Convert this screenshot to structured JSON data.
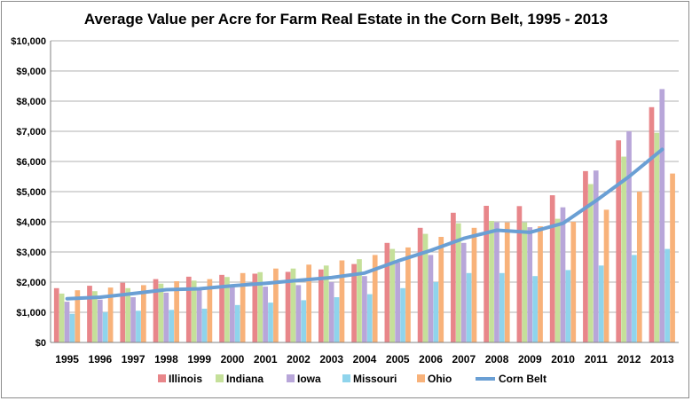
{
  "chart_data": {
    "type": "bar",
    "title": "Average Value per Acre for Farm Real Estate in the Corn Belt, 1995 - 2013",
    "categories": [
      "1995",
      "1996",
      "1997",
      "1998",
      "1999",
      "2000",
      "2001",
      "2002",
      "2003",
      "2004",
      "2005",
      "2006",
      "2007",
      "2008",
      "2009",
      "2010",
      "2011",
      "2012",
      "2013"
    ],
    "ylim": [
      0,
      10000
    ],
    "yticks": [
      "$0",
      "$1,000",
      "$2,000",
      "$3,000",
      "$4,000",
      "$5,000",
      "$6,000",
      "$7,000",
      "$8,000",
      "$9,000",
      "$10,000"
    ],
    "grid": true,
    "legend_position": "bottom",
    "series": [
      {
        "name": "Illinois",
        "type": "bar",
        "color": "#e8868a",
        "values": [
          1800,
          1880,
          1980,
          2100,
          2180,
          2240,
          2280,
          2340,
          2420,
          2600,
          3300,
          3800,
          4300,
          4530,
          4520,
          4880,
          5680,
          6700,
          7800
        ]
      },
      {
        "name": "Indiana",
        "type": "bar",
        "color": "#c5e09a",
        "values": [
          1620,
          1700,
          1800,
          1950,
          2050,
          2170,
          2330,
          2450,
          2550,
          2760,
          3100,
          3600,
          3950,
          4030,
          3980,
          4100,
          5250,
          6160,
          6950
        ]
      },
      {
        "name": "Iowa",
        "type": "bar",
        "color": "#b8a6d9",
        "values": [
          1350,
          1420,
          1500,
          1650,
          1750,
          1850,
          1850,
          1900,
          2000,
          2200,
          2650,
          2900,
          3300,
          3980,
          3820,
          4480,
          5700,
          7000,
          8400
        ]
      },
      {
        "name": "Missouri",
        "type": "bar",
        "color": "#8fd4ec",
        "values": [
          950,
          1000,
          1050,
          1080,
          1120,
          1240,
          1320,
          1400,
          1500,
          1600,
          1800,
          2000,
          2300,
          2300,
          2200,
          2400,
          2550,
          2900,
          3100
        ]
      },
      {
        "name": "Ohio",
        "type": "bar",
        "color": "#f8b27a",
        "values": [
          1730,
          1820,
          1900,
          2030,
          2100,
          2300,
          2450,
          2580,
          2720,
          2900,
          3150,
          3500,
          3800,
          3980,
          3850,
          4000,
          4400,
          5000,
          5600
        ]
      },
      {
        "name": "Corn Belt",
        "type": "line",
        "color": "#6a9fd4",
        "values": [
          1450,
          1500,
          1620,
          1750,
          1780,
          1880,
          1960,
          2060,
          2150,
          2300,
          2700,
          3050,
          3450,
          3720,
          3650,
          3950,
          4700,
          5500,
          6400
        ]
      }
    ]
  }
}
